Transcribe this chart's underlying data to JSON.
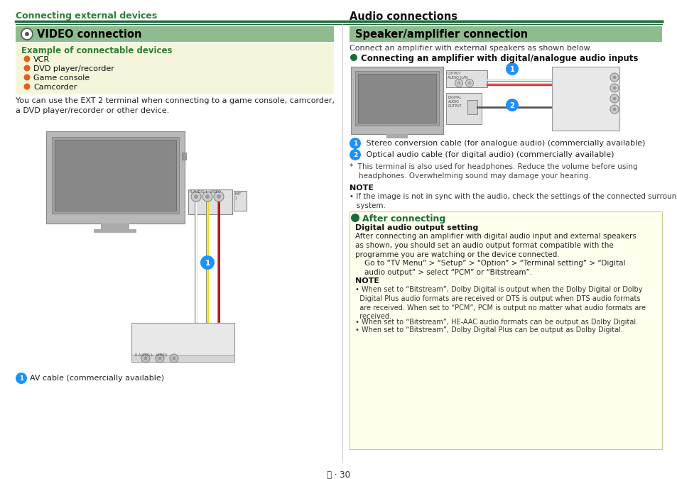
{
  "page_bg": "#ffffff",
  "top_label": "Connecting external devices",
  "top_label_color": "#2e7d32",
  "divider_color": "#1a6b3a",
  "left_section_title": "VIDEO connection",
  "left_section_title_bg": "#8fbc8f",
  "left_section_title_color": "#000000",
  "example_box_bg": "#f5f5dc",
  "example_box_title": "Example of connectable devices",
  "example_box_title_color": "#2e7d32",
  "bullet_color": "#e06020",
  "example_items": [
    "VCR",
    "DVD player/recorder",
    "Game console",
    "Camcorder"
  ],
  "left_body_text": "You can use the EXT 2 terminal when connecting to a game console, camcorder,\na DVD player/recorder or other device.",
  "right_section_audio_title": "Audio connections",
  "right_section_speaker_title": "Speaker/amplifier connection",
  "right_section_speaker_title_bg": "#8fbc8f",
  "right_intro_text": "Connect an amplifier with external speakers as shown below.",
  "right_bullet_label": "Connecting an amplifier with digital/analogue audio inputs",
  "right_bullet_label_color": "#1a6b3a",
  "caption1": " Stereo conversion cable (for analogue audio) (commercially available)",
  "caption2": " Optical audio cable (for digital audio) (commercially available)",
  "asterisk_text": "*  This terminal is also used for headphones. Reduce the volume before using\n    headphones. Overwhelming sound may damage your hearing.",
  "note_title_right": "NOTE",
  "note_text_right": "• If the image is not in sync with the audio, check the settings of the connected surround\n   system.",
  "after_connecting_box_bg": "#ffffee",
  "after_connecting_title": "After connecting",
  "after_connecting_title_color": "#1a6b3a",
  "digital_audio_title": "Digital audio output setting",
  "digital_audio_body": "After connecting an amplifier with digital audio input and external speakers\nas shown, you should set an audio output format compatible with the\nprogramme you are watching or the device connected.",
  "go_to_text": "    Go to “TV Menu” > “Setup” > “Option” > “Terminal setting” > “Digital\n    audio output” > select “PCM” or “Bitstream”.",
  "note2_title": "NOTE",
  "note2_bullets": [
    "• When set to “Bitstream”, Dolby Digital is output when the Dolby Digital or Dolby\n  Digital Plus audio formats are received or DTS is output when DTS audio formats\n  are received. When set to “PCM”, PCM is output no matter what audio formats are\n  received.",
    "• When set to “Bitstream”, HE-AAC audio formats can be output as Dolby Digital.",
    "• When set to “Bitstream”, Dolby Digital Plus can be output as Dolby Digital."
  ],
  "page_number": "Ⓐ · 30",
  "blue_color": "#1e90ff",
  "green_bullet_color": "#1a6b3a"
}
